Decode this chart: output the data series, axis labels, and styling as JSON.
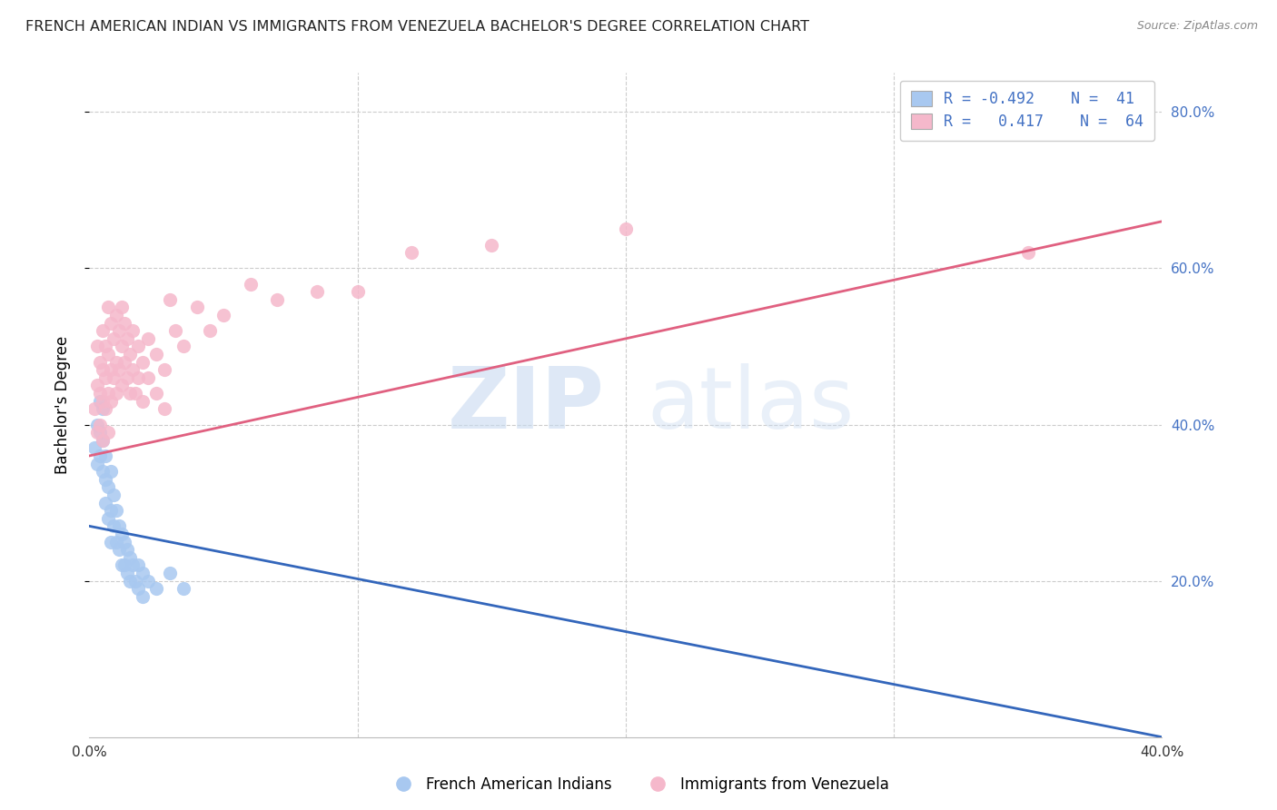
{
  "title": "FRENCH AMERICAN INDIAN VS IMMIGRANTS FROM VENEZUELA BACHELOR'S DEGREE CORRELATION CHART",
  "source": "Source: ZipAtlas.com",
  "ylabel": "Bachelor's Degree",
  "watermark_zip": "ZIP",
  "watermark_atlas": "atlas",
  "xlim": [
    0.0,
    0.4
  ],
  "ylim": [
    0.0,
    0.85
  ],
  "yticks": [
    0.2,
    0.4,
    0.6,
    0.8
  ],
  "ytick_labels": [
    "20.0%",
    "40.0%",
    "60.0%",
    "80.0%"
  ],
  "xticks": [
    0.0,
    0.1,
    0.2,
    0.3,
    0.4
  ],
  "xtick_labels": [
    "0.0%",
    "",
    "",
    "",
    "40.0%"
  ],
  "legend_blue_r": "-0.492",
  "legend_blue_n": "41",
  "legend_pink_r": "0.417",
  "legend_pink_n": "64",
  "blue_color": "#a8c8f0",
  "pink_color": "#f5b8cb",
  "blue_line_color": "#3366bb",
  "pink_line_color": "#e06080",
  "right_axis_color": "#4472c4",
  "grid_color": "#cccccc",
  "blue_scatter": [
    [
      0.002,
      0.37
    ],
    [
      0.003,
      0.4
    ],
    [
      0.003,
      0.35
    ],
    [
      0.004,
      0.43
    ],
    [
      0.004,
      0.39
    ],
    [
      0.004,
      0.36
    ],
    [
      0.005,
      0.42
    ],
    [
      0.005,
      0.38
    ],
    [
      0.005,
      0.34
    ],
    [
      0.006,
      0.36
    ],
    [
      0.006,
      0.33
    ],
    [
      0.006,
      0.3
    ],
    [
      0.007,
      0.32
    ],
    [
      0.007,
      0.28
    ],
    [
      0.008,
      0.34
    ],
    [
      0.008,
      0.29
    ],
    [
      0.008,
      0.25
    ],
    [
      0.009,
      0.31
    ],
    [
      0.009,
      0.27
    ],
    [
      0.01,
      0.29
    ],
    [
      0.01,
      0.25
    ],
    [
      0.011,
      0.27
    ],
    [
      0.011,
      0.24
    ],
    [
      0.012,
      0.26
    ],
    [
      0.012,
      0.22
    ],
    [
      0.013,
      0.25
    ],
    [
      0.013,
      0.22
    ],
    [
      0.014,
      0.24
    ],
    [
      0.014,
      0.21
    ],
    [
      0.015,
      0.23
    ],
    [
      0.015,
      0.2
    ],
    [
      0.016,
      0.22
    ],
    [
      0.017,
      0.2
    ],
    [
      0.018,
      0.22
    ],
    [
      0.018,
      0.19
    ],
    [
      0.02,
      0.21
    ],
    [
      0.02,
      0.18
    ],
    [
      0.022,
      0.2
    ],
    [
      0.025,
      0.19
    ],
    [
      0.03,
      0.21
    ],
    [
      0.035,
      0.19
    ]
  ],
  "pink_scatter": [
    [
      0.002,
      0.42
    ],
    [
      0.003,
      0.45
    ],
    [
      0.003,
      0.39
    ],
    [
      0.003,
      0.5
    ],
    [
      0.004,
      0.48
    ],
    [
      0.004,
      0.44
    ],
    [
      0.004,
      0.4
    ],
    [
      0.005,
      0.52
    ],
    [
      0.005,
      0.47
    ],
    [
      0.005,
      0.43
    ],
    [
      0.005,
      0.38
    ],
    [
      0.006,
      0.5
    ],
    [
      0.006,
      0.46
    ],
    [
      0.006,
      0.42
    ],
    [
      0.007,
      0.55
    ],
    [
      0.007,
      0.49
    ],
    [
      0.007,
      0.44
    ],
    [
      0.007,
      0.39
    ],
    [
      0.008,
      0.53
    ],
    [
      0.008,
      0.47
    ],
    [
      0.008,
      0.43
    ],
    [
      0.009,
      0.51
    ],
    [
      0.009,
      0.46
    ],
    [
      0.01,
      0.54
    ],
    [
      0.01,
      0.48
    ],
    [
      0.01,
      0.44
    ],
    [
      0.011,
      0.52
    ],
    [
      0.011,
      0.47
    ],
    [
      0.012,
      0.55
    ],
    [
      0.012,
      0.5
    ],
    [
      0.012,
      0.45
    ],
    [
      0.013,
      0.53
    ],
    [
      0.013,
      0.48
    ],
    [
      0.014,
      0.51
    ],
    [
      0.014,
      0.46
    ],
    [
      0.015,
      0.49
    ],
    [
      0.015,
      0.44
    ],
    [
      0.016,
      0.52
    ],
    [
      0.016,
      0.47
    ],
    [
      0.017,
      0.44
    ],
    [
      0.018,
      0.5
    ],
    [
      0.018,
      0.46
    ],
    [
      0.02,
      0.48
    ],
    [
      0.02,
      0.43
    ],
    [
      0.022,
      0.51
    ],
    [
      0.022,
      0.46
    ],
    [
      0.025,
      0.49
    ],
    [
      0.025,
      0.44
    ],
    [
      0.028,
      0.47
    ],
    [
      0.028,
      0.42
    ],
    [
      0.03,
      0.56
    ],
    [
      0.032,
      0.52
    ],
    [
      0.035,
      0.5
    ],
    [
      0.04,
      0.55
    ],
    [
      0.045,
      0.52
    ],
    [
      0.05,
      0.54
    ],
    [
      0.06,
      0.58
    ],
    [
      0.07,
      0.56
    ],
    [
      0.085,
      0.57
    ],
    [
      0.1,
      0.57
    ],
    [
      0.12,
      0.62
    ],
    [
      0.15,
      0.63
    ],
    [
      0.2,
      0.65
    ],
    [
      0.35,
      0.62
    ]
  ],
  "blue_trendline": [
    [
      0.0,
      0.27
    ],
    [
      0.4,
      0.0
    ]
  ],
  "pink_trendline": [
    [
      0.0,
      0.36
    ],
    [
      0.4,
      0.66
    ]
  ]
}
